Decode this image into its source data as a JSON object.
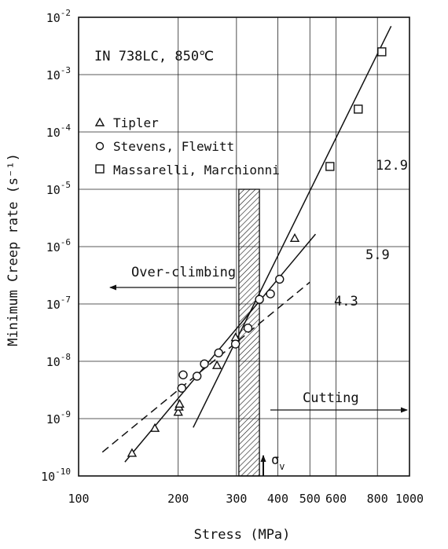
{
  "chart_data": {
    "type": "scatter",
    "condition_label": "IN 738LC, 850℃",
    "xlabel": "Stress (MPa)",
    "ylabel": "Minimum Creep rate (s⁻¹)",
    "xscale": "log",
    "yscale": "log",
    "xlim": [
      100,
      1000
    ],
    "ylim": [
      1e-10,
      0.01
    ],
    "grid": true,
    "legend_position": "upper-left",
    "x_ticks": [
      {
        "value": 100,
        "label": "100"
      },
      {
        "value": 200,
        "label": "200"
      },
      {
        "value": 300,
        "label": "300"
      },
      {
        "value": 400,
        "label": "400"
      },
      {
        "value": 500,
        "label": "500"
      },
      {
        "value": 600,
        "label": "600"
      },
      {
        "value": 800,
        "label": "800"
      },
      {
        "value": 1000,
        "label": "1000"
      }
    ],
    "y_ticks": [
      {
        "value": 1e-10,
        "base": "10",
        "exp": "-10"
      },
      {
        "value": 1e-09,
        "base": "10",
        "exp": "-9"
      },
      {
        "value": 1e-08,
        "base": "10",
        "exp": "-8"
      },
      {
        "value": 1e-07,
        "base": "10",
        "exp": "-7"
      },
      {
        "value": 1e-06,
        "base": "10",
        "exp": "-6"
      },
      {
        "value": 1e-05,
        "base": "10",
        "exp": "-5"
      },
      {
        "value": 0.0001,
        "base": "10",
        "exp": "-4"
      },
      {
        "value": 0.001,
        "base": "10",
        "exp": "-3"
      },
      {
        "value": 0.01,
        "base": "10",
        "exp": "-2"
      }
    ],
    "series": [
      {
        "name": "Tipler",
        "marker": "triangle",
        "points": [
          [
            145,
            2.5e-10
          ],
          [
            170,
            6.8e-10
          ],
          [
            200,
            1.3e-09
          ],
          [
            201,
            1.6e-09
          ],
          [
            202,
            1.8e-09
          ],
          [
            262,
            8.5e-09
          ],
          [
            298,
            2.6e-08
          ],
          [
            450,
            1.4e-06
          ]
        ]
      },
      {
        "name": "Stevens, Flewitt",
        "marker": "circle",
        "points": [
          [
            205,
            3.4e-09
          ],
          [
            207,
            5.8e-09
          ],
          [
            228,
            5.5e-09
          ],
          [
            240,
            9e-09
          ],
          [
            265,
            1.4e-08
          ],
          [
            298,
            2e-08
          ],
          [
            325,
            3.8e-08
          ],
          [
            352,
            1.2e-07
          ],
          [
            380,
            1.5e-07
          ],
          [
            405,
            2.7e-07
          ]
        ]
      },
      {
        "name": "Massarelli, Marchionni",
        "marker": "square",
        "points": [
          [
            575,
            2.5e-05
          ],
          [
            700,
            0.00025
          ],
          [
            825,
            0.0025
          ]
        ]
      }
    ],
    "fit_lines": [
      {
        "slope_label": "12.9",
        "style": "solid",
        "x": [
          222,
          880
        ],
        "y": [
          7e-10,
          0.007
        ]
      },
      {
        "slope_label": "5.9",
        "style": "solid",
        "x": [
          138,
          520
        ],
        "y": [
          1.75e-10,
          1.65e-06
        ]
      },
      {
        "slope_label": "4.3",
        "style": "dashed",
        "x": [
          118,
          500
        ],
        "y": [
          2.6e-10,
          2.4e-07
        ]
      }
    ],
    "shaded_band": {
      "x": [
        305,
        352
      ],
      "y": [
        1e-10,
        1e-05
      ]
    },
    "annotations": [
      {
        "text": "Over-climbing",
        "direction": "left"
      },
      {
        "text": "Cutting",
        "direction": "right"
      },
      {
        "text": "σ",
        "subscript": "v",
        "x": 338
      }
    ]
  }
}
